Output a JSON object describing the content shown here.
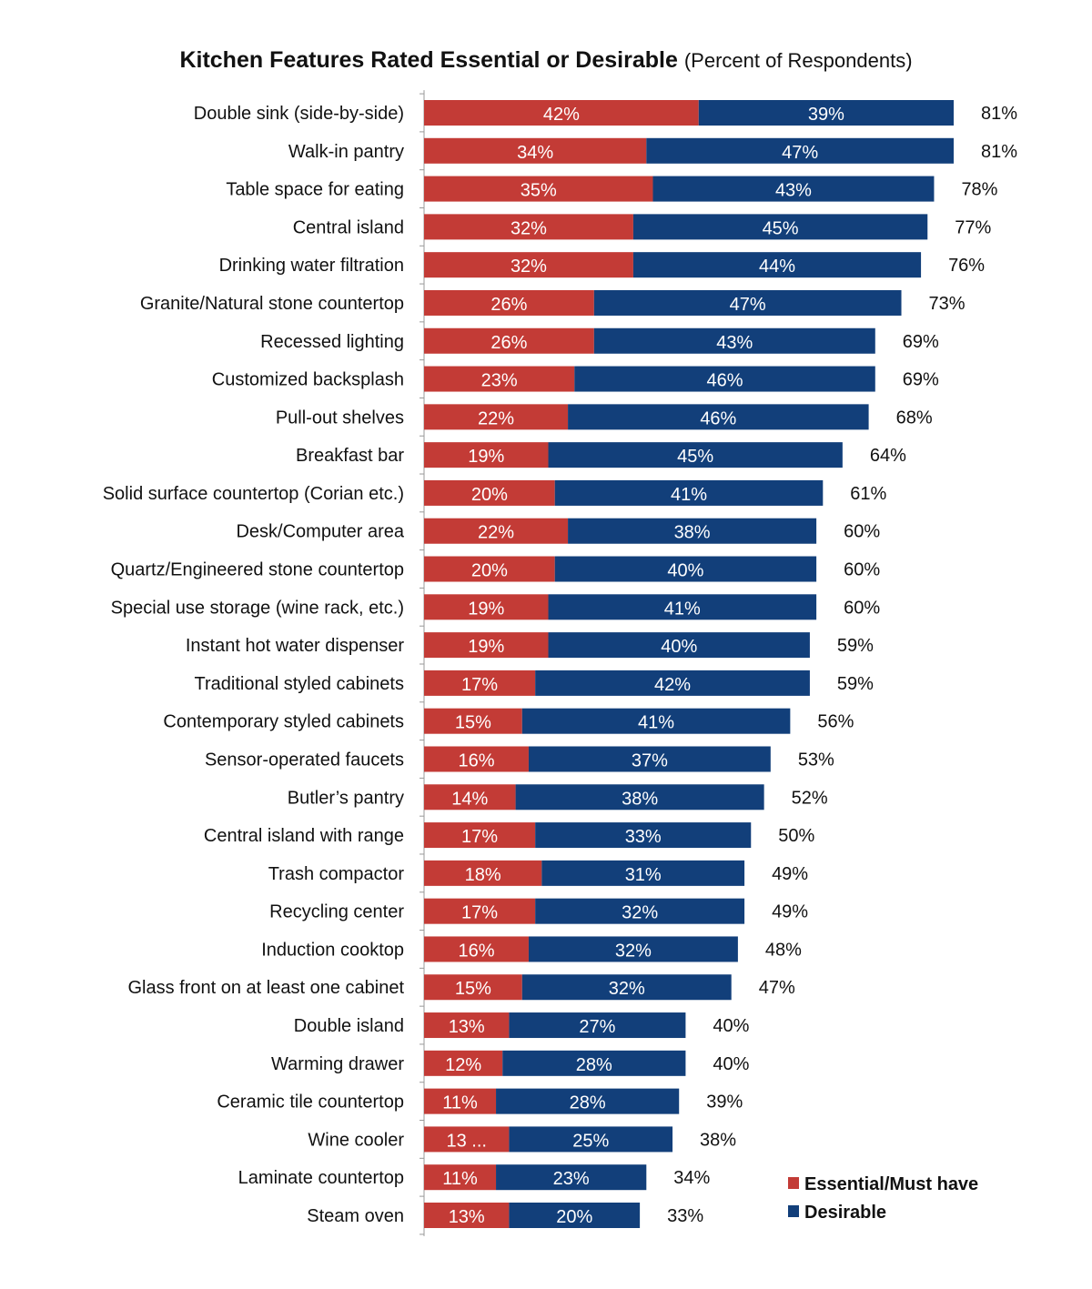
{
  "chart_data": {
    "type": "bar",
    "orientation": "horizontal",
    "stacked": true,
    "title": "Kitchen Features Rated Essential or Desirable",
    "subtitle": "(Percent of Respondents)",
    "categories": [
      "Double sink (side-by-side)",
      "Walk-in pantry",
      "Table space for eating",
      "Central island",
      "Drinking water filtration",
      "Granite/Natural stone countertop",
      "Recessed lighting",
      "Customized backsplash",
      "Pull-out shelves",
      "Breakfast bar",
      "Solid surface countertop (Corian etc.)",
      "Desk/Computer area",
      "Quartz/Engineered stone  countertop",
      "Special use storage (wine rack, etc.)",
      "Instant hot water dispenser",
      "Traditional styled cabinets",
      "Contemporary styled cabinets",
      "Sensor-operated faucets",
      "Butler’s pantry",
      "Central island with range",
      "Trash compactor",
      "Recycling center",
      "Induction cooktop",
      "Glass front on at least one  cabinet",
      "Double island",
      "Warming drawer",
      "Ceramic tile countertop",
      "Wine cooler",
      "Laminate countertop",
      "Steam oven"
    ],
    "series": [
      {
        "name": "Essential/Must have",
        "color": "#c33b36",
        "values": [
          42,
          34,
          35,
          32,
          32,
          26,
          26,
          23,
          22,
          19,
          20,
          22,
          20,
          19,
          19,
          17,
          15,
          16,
          14,
          17,
          18,
          17,
          16,
          15,
          13,
          12,
          11,
          13,
          11,
          13
        ],
        "labels": [
          "42%",
          "34%",
          "35%",
          "32%",
          "32%",
          "26%",
          "26%",
          "23%",
          "22%",
          "19%",
          "20%",
          "22%",
          "20%",
          "19%",
          "19%",
          "17%",
          "15%",
          "16%",
          "14%",
          "17%",
          "18%",
          "17%",
          "16%",
          "15%",
          "13%",
          "12%",
          "11%",
          "13 ...",
          "11%",
          "13%"
        ]
      },
      {
        "name": "Desirable",
        "color": "#123f7a",
        "values": [
          39,
          47,
          43,
          45,
          44,
          47,
          43,
          46,
          46,
          45,
          41,
          38,
          40,
          41,
          40,
          42,
          41,
          37,
          38,
          33,
          31,
          32,
          32,
          32,
          27,
          28,
          28,
          25,
          23,
          20
        ],
        "labels": [
          "39%",
          "47%",
          "43%",
          "45%",
          "44%",
          "47%",
          "43%",
          "46%",
          "46%",
          "45%",
          "41%",
          "38%",
          "40%",
          "41%",
          "40%",
          "42%",
          "41%",
          "37%",
          "38%",
          "33%",
          "31%",
          "32%",
          "32%",
          "32%",
          "27%",
          "28%",
          "28%",
          "25%",
          "23%",
          "20%"
        ]
      }
    ],
    "totals": [
      "81%",
      "81%",
      "78%",
      "77%",
      "76%",
      "73%",
      "69%",
      "69%",
      "68%",
      "64%",
      "61%",
      "60%",
      "60%",
      "60%",
      "59%",
      "59%",
      "56%",
      "53%",
      "52%",
      "50%",
      "49%",
      "49%",
      "48%",
      "47%",
      "40%",
      "40%",
      "39%",
      "38%",
      "34%",
      "33%"
    ],
    "xlim": [
      0,
      81
    ],
    "grid": false,
    "legend_position": "bottom-right"
  }
}
